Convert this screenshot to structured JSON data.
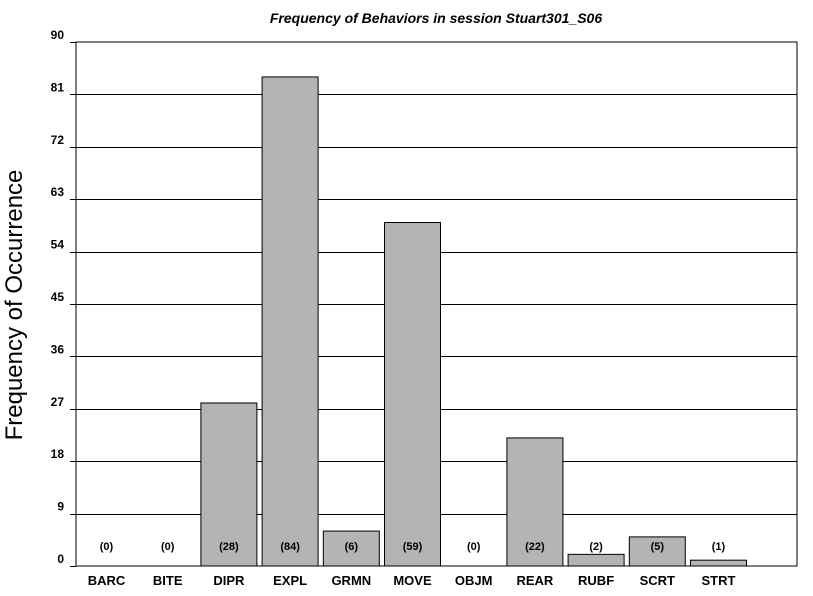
{
  "chart_data": {
    "type": "bar",
    "title": "Frequency of Behaviors in session Stuart301_S06",
    "xlabel": "",
    "ylabel": "Frequency of Occurrence",
    "categories": [
      "BARC",
      "BITE",
      "DIPR",
      "EXPL",
      "GRMN",
      "MOVE",
      "OBJM",
      "REAR",
      "RUBF",
      "SCRT",
      "STRT"
    ],
    "values": [
      0,
      0,
      28,
      84,
      6,
      59,
      0,
      22,
      2,
      5,
      1
    ],
    "data_labels": [
      "(0)",
      "(0)",
      "(28)",
      "(84)",
      "(6)",
      "(59)",
      "(0)",
      "(22)",
      "(2)",
      "(5)",
      "(1)"
    ],
    "ylim": [
      0,
      90
    ],
    "yticks": [
      0,
      9,
      18,
      27,
      36,
      45,
      54,
      63,
      72,
      81,
      90
    ],
    "grid": "horizontal",
    "bar_color": "#b4b4b4",
    "bar_edge_color": "#000000"
  }
}
